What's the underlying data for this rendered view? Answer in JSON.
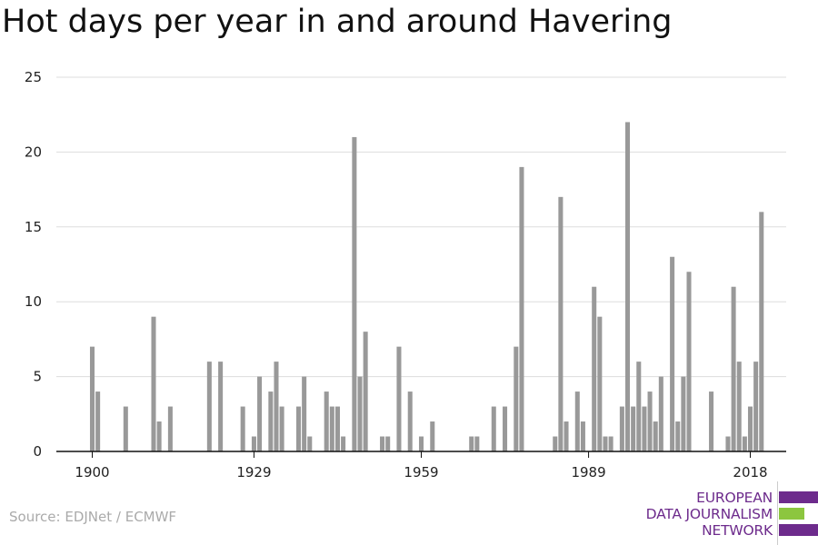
{
  "chart_data": {
    "type": "bar",
    "title": "Hot days per year in and around Havering",
    "xlabel": "",
    "ylabel": "",
    "x_range": [
      1900,
      2018
    ],
    "ylim": [
      0,
      25
    ],
    "y_ticks": [
      0,
      5,
      10,
      15,
      20,
      25
    ],
    "x_tick_labels": [
      "1900",
      "1929",
      "1959",
      "1989",
      "2018"
    ],
    "grid": true,
    "legend": "none",
    "bar_color": "#999999",
    "values": [
      7,
      4,
      0,
      0,
      0,
      0,
      3,
      0,
      0,
      0,
      0,
      9,
      2,
      0,
      3,
      0,
      0,
      0,
      0,
      0,
      0,
      6,
      0,
      6,
      0,
      0,
      0,
      3,
      0,
      1,
      5,
      0,
      4,
      6,
      3,
      0,
      0,
      3,
      5,
      1,
      0,
      0,
      4,
      3,
      3,
      1,
      0,
      21,
      5,
      8,
      0,
      0,
      1,
      1,
      0,
      7,
      0,
      4,
      0,
      1,
      0,
      2,
      0,
      0,
      0,
      0,
      0,
      0,
      1,
      1,
      0,
      0,
      3,
      0,
      3,
      0,
      7,
      19,
      0,
      0,
      0,
      0,
      0,
      1,
      17,
      2,
      0,
      4,
      2,
      0,
      11,
      9,
      1,
      1,
      0,
      3,
      22,
      3,
      6,
      3,
      4,
      2,
      5,
      0,
      13,
      2,
      5,
      12,
      0,
      0,
      0,
      4,
      0,
      0,
      1,
      11,
      6,
      1,
      3,
      6,
      16
    ]
  },
  "source": "Source: EDJNet / ECMWF",
  "logo": {
    "line1": "EUROPEAN",
    "line2": "DATA JOURNALISM",
    "line3": "NETWORK",
    "purple": "#6d2b8c",
    "green": "#8cc63f"
  }
}
